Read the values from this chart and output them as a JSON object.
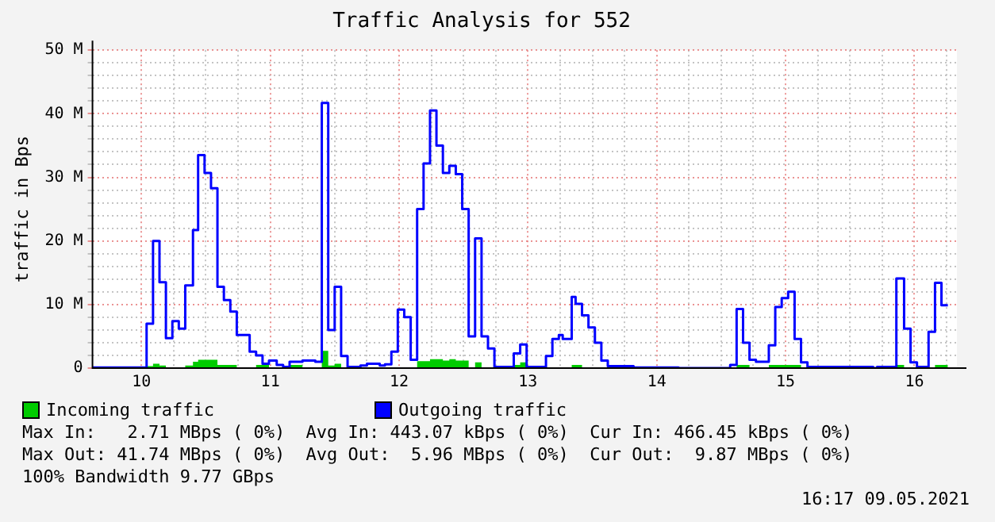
{
  "chart_data": {
    "type": "line",
    "title": "Traffic Analysis for 552",
    "ylabel": "traffic in Bps",
    "xlim": [
      9.62,
      16.33
    ],
    "xticks": [
      10,
      {
        "value": 10.25,
        "label": null
      },
      {
        "value": 10.5,
        "label": null
      },
      {
        "value": 10.75,
        "label": null
      },
      11,
      {
        "value": 11.25,
        "label": null
      },
      {
        "value": 11.5,
        "label": null
      },
      {
        "value": 11.75,
        "label": null
      },
      12,
      {
        "value": 12.25,
        "label": null
      },
      {
        "value": 12.5,
        "label": null
      },
      {
        "value": 12.75,
        "label": null
      },
      13,
      {
        "value": 13.25,
        "label": null
      },
      {
        "value": 13.5,
        "label": null
      },
      {
        "value": 13.75,
        "label": null
      },
      14,
      {
        "value": 14.25,
        "label": null
      },
      {
        "value": 14.5,
        "label": null
      },
      {
        "value": 14.75,
        "label": null
      },
      15,
      {
        "value": 15.25,
        "label": null
      },
      {
        "value": 15.5,
        "label": null
      },
      {
        "value": 15.75,
        "label": null
      },
      16,
      {
        "value": 16.25,
        "label": null
      }
    ],
    "ylim": [
      0,
      50
    ],
    "yticks": [
      0,
      {
        "value": 2,
        "label": null
      },
      {
        "value": 4,
        "label": null
      },
      {
        "value": 6,
        "label": null
      },
      {
        "value": 8,
        "label": null
      },
      {
        "value": 10,
        "label": "10 M"
      },
      {
        "value": 12,
        "label": null
      },
      {
        "value": 14,
        "label": null
      },
      {
        "value": 16,
        "label": null
      },
      {
        "value": 18,
        "label": null
      },
      {
        "value": 20,
        "label": "20 M"
      },
      {
        "value": 22,
        "label": null
      },
      {
        "value": 24,
        "label": null
      },
      {
        "value": 26,
        "label": null
      },
      {
        "value": 28,
        "label": null
      },
      {
        "value": 30,
        "label": "30 M"
      },
      {
        "value": 32,
        "label": null
      },
      {
        "value": 34,
        "label": null
      },
      {
        "value": 36,
        "label": null
      },
      {
        "value": 38,
        "label": null
      },
      {
        "value": 40,
        "label": "40 M"
      },
      {
        "value": 42,
        "label": null
      },
      {
        "value": 44,
        "label": null
      },
      {
        "value": 46,
        "label": null
      },
      {
        "value": 48,
        "label": null
      },
      {
        "value": 50,
        "label": "50 M"
      }
    ],
    "grid": true,
    "legend": "bottom",
    "marker": "none",
    "line_style": "solid",
    "series": [
      {
        "name": "Incoming traffic",
        "type": "area",
        "color": "#00cc00",
        "x": [
          9.62,
          10.04,
          10.09,
          10.14,
          10.19,
          10.34,
          10.4,
          10.44,
          10.59,
          10.74,
          10.89,
          10.99,
          11.15,
          11.25,
          11.4,
          11.45,
          11.5,
          11.55,
          12.14,
          12.24,
          12.34,
          12.39,
          12.44,
          12.54,
          12.59,
          12.64,
          12.89,
          12.94,
          12.99,
          13.34,
          13.42,
          14.62,
          14.72,
          14.87,
          15.12,
          15.86,
          15.92,
          16.16,
          16.26
        ],
        "values": [
          0.1,
          0.3,
          0.7,
          0.4,
          0.1,
          0.4,
          1.0,
          1.3,
          0.5,
          0.1,
          0.5,
          0.1,
          0.5,
          0.1,
          2.7,
          0.4,
          0.7,
          0.1,
          1.1,
          1.4,
          1.2,
          1.4,
          1.2,
          0.1,
          0.9,
          0.1,
          0.5,
          0.9,
          0.1,
          0.5,
          0.1,
          0.5,
          0.1,
          0.5,
          0.1,
          0.5,
          0.1,
          0.5,
          0.5
        ]
      },
      {
        "name": "Outgoing traffic",
        "type": "step",
        "color": "#0000ff",
        "x": [
          9.62,
          10.04,
          10.09,
          10.14,
          10.19,
          10.24,
          10.29,
          10.34,
          10.4,
          10.44,
          10.49,
          10.54,
          10.59,
          10.64,
          10.69,
          10.74,
          10.84,
          10.89,
          10.94,
          10.99,
          11.05,
          11.1,
          11.15,
          11.25,
          11.35,
          11.4,
          11.45,
          11.5,
          11.55,
          11.6,
          11.7,
          11.75,
          11.85,
          11.89,
          11.94,
          11.99,
          12.04,
          12.09,
          12.14,
          12.19,
          12.24,
          12.29,
          12.34,
          12.39,
          12.44,
          12.49,
          12.54,
          12.59,
          12.64,
          12.69,
          12.74,
          12.89,
          12.94,
          12.99,
          13.14,
          13.19,
          13.24,
          13.27,
          13.34,
          13.37,
          13.42,
          13.47,
          13.52,
          13.57,
          13.62,
          13.82,
          14.17,
          14.57,
          14.62,
          14.67,
          14.72,
          14.77,
          14.87,
          14.92,
          14.97,
          15.02,
          15.07,
          15.12,
          15.17,
          15.68,
          15.71,
          15.86,
          15.92,
          15.97,
          16.02,
          16.11,
          16.16,
          16.21,
          16.26
        ],
        "values": [
          0.1,
          7,
          20,
          13.5,
          4.7,
          7.4,
          6.2,
          13,
          21.7,
          33.5,
          30.7,
          28.3,
          12.8,
          10.7,
          8.9,
          5.2,
          2.6,
          2.0,
          0.7,
          1.2,
          0.5,
          0.2,
          1.0,
          1.2,
          1.0,
          41.7,
          6.0,
          12.8,
          1.9,
          0.2,
          0.4,
          0.7,
          0.4,
          0.6,
          2.6,
          9.2,
          8.0,
          1.3,
          25,
          32.2,
          40.5,
          35,
          30.7,
          31.8,
          30.5,
          25,
          5,
          20.4,
          5,
          3.1,
          0.2,
          2.3,
          3.7,
          0.2,
          1.9,
          4.6,
          5.2,
          4.6,
          11.2,
          10.1,
          8.3,
          6.4,
          4.0,
          1.2,
          0.3,
          0.1,
          0,
          0.5,
          9.3,
          4.0,
          1.3,
          1.0,
          3.6,
          9.6,
          11,
          12,
          4.6,
          0.9,
          0.2,
          0,
          0.2,
          14.1,
          6.2,
          0.9,
          0.2,
          5.7,
          13.4,
          9.9,
          9.9
        ]
      }
    ],
    "annotations": [
      "Max In:   2.71 MBps ( 0%)  Avg In: 443.07 kBps ( 0%)  Cur In: 466.45 kBps ( 0%)",
      "Max Out: 41.74 MBps ( 0%)  Avg Out:  5.96 MBps ( 0%)  Cur Out:  9.87 MBps ( 0%)",
      "100% Bandwidth 9.77 GBps",
      "16:17 09.05.2021"
    ]
  }
}
